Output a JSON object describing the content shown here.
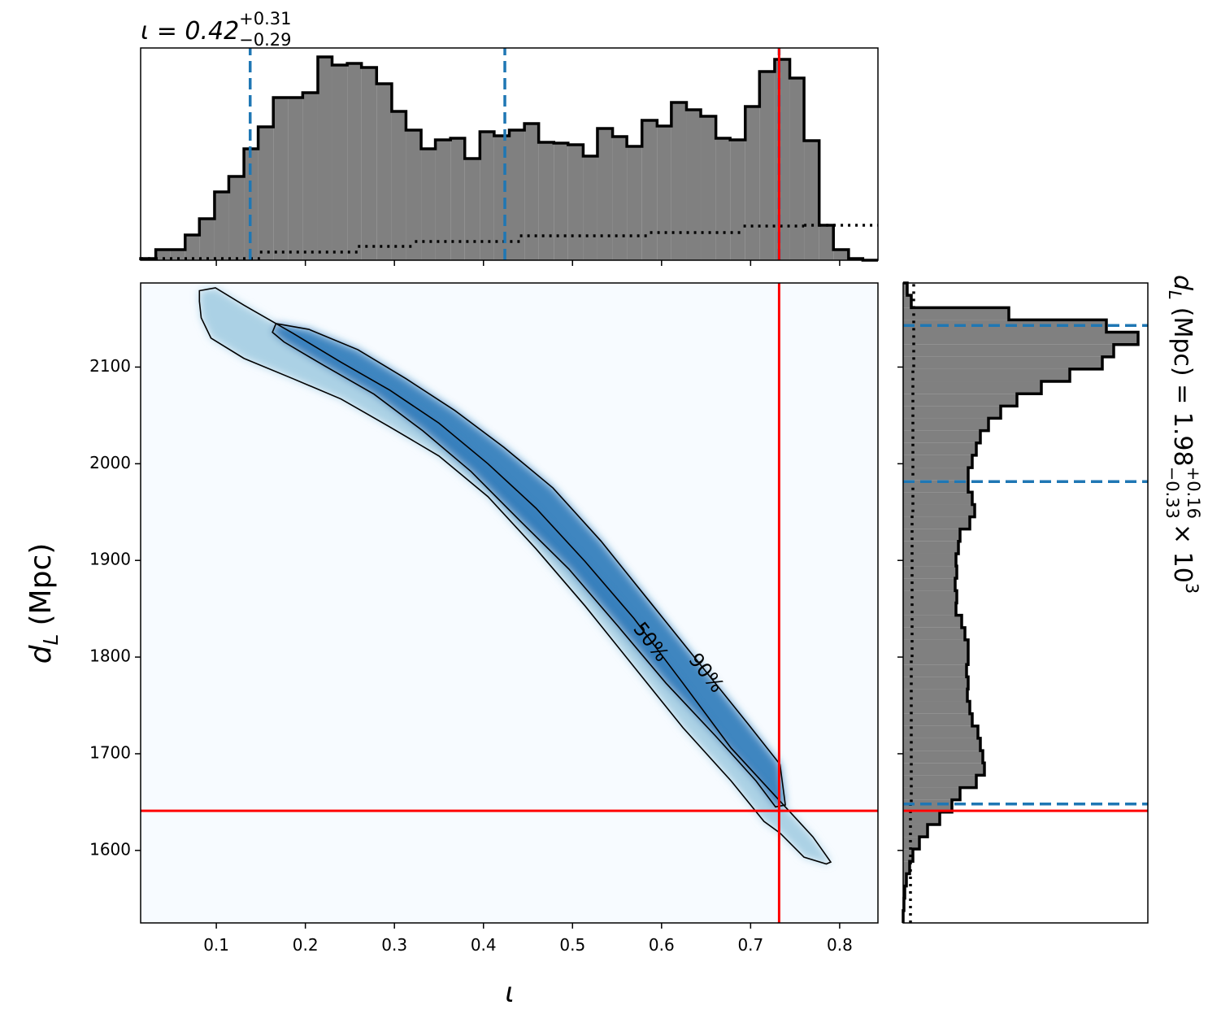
{
  "chart_data": [
    {
      "type": "histogram",
      "orientation": "vertical",
      "title": {
        "text": "ι = 0.42",
        "sup": "+0.31",
        "sub": "−0.29"
      },
      "xlim": [
        0.015,
        0.843
      ],
      "ylim": [
        0,
        261
      ],
      "xticks": [
        0.1,
        0.2,
        0.3,
        0.4,
        0.5,
        0.6,
        0.7,
        0.8
      ],
      "bins": [
        0.015,
        0.032,
        0.048,
        0.065,
        0.081,
        0.098,
        0.114,
        0.131,
        0.147,
        0.164,
        0.181,
        0.197,
        0.214,
        0.23,
        0.247,
        0.263,
        0.28,
        0.297,
        0.313,
        0.33,
        0.346,
        0.363,
        0.379,
        0.396,
        0.412,
        0.429,
        0.446,
        0.462,
        0.479,
        0.495,
        0.512,
        0.528,
        0.545,
        0.561,
        0.578,
        0.595,
        0.611,
        0.628,
        0.644,
        0.661,
        0.677,
        0.694,
        0.71,
        0.727,
        0.744,
        0.76,
        0.777,
        0.793,
        0.81,
        0.826,
        0.843
      ],
      "counts": [
        2,
        13,
        13,
        31,
        51,
        84,
        103,
        137,
        164,
        200,
        200,
        206,
        250,
        240,
        242,
        237,
        217,
        183,
        160,
        137,
        148,
        150,
        125,
        158,
        153,
        160,
        168,
        145,
        144,
        142,
        128,
        162,
        152,
        140,
        172,
        165,
        194,
        185,
        177,
        150,
        148,
        189,
        232,
        247,
        224,
        147,
        43,
        13,
        2,
        0
      ],
      "color": "#808080",
      "edge_color": "#000000",
      "quantiles": [
        0.138,
        0.424,
        0.732
      ],
      "quantile_color": "#1f77b4",
      "truth": 0.732,
      "truth_color": "#ff0000",
      "prior": {
        "x": [
          0.015,
          0.149,
          0.259,
          0.323,
          0.441,
          0.587,
          0.692,
          0.76
        ],
        "values": [
          2,
          10,
          17,
          23,
          30,
          34,
          42,
          43
        ]
      }
    },
    {
      "type": "contour",
      "xlim": [
        0.015,
        0.843
      ],
      "ylim": [
        1525,
        2187
      ],
      "xticks": [
        0.1,
        0.2,
        0.3,
        0.4,
        0.5,
        0.6,
        0.7,
        0.8
      ],
      "yticks": [
        1600,
        1700,
        1800,
        1900,
        2000,
        2100
      ],
      "xlabel": "ι",
      "ylabel": {
        "symbol": "d",
        "subscript": "L",
        "unit": "(Mpc)"
      },
      "background": "#f7fbff",
      "contours": [
        {
          "label": "90%",
          "fill": "#9ecae1",
          "color": "#000000",
          "x": [
            0.081,
            0.099,
            0.131,
            0.186,
            0.24,
            0.295,
            0.35,
            0.405,
            0.459,
            0.514,
            0.569,
            0.624,
            0.678,
            0.733,
            0.77,
            0.79,
            0.785,
            0.76,
            0.733,
            0.715,
            0.678,
            0.624,
            0.569,
            0.514,
            0.459,
            0.405,
            0.35,
            0.295,
            0.24,
            0.186,
            0.131,
            0.094,
            0.083,
            0.081
          ],
          "y": [
            2179,
            2182,
            2164,
            2135,
            2105,
            2076,
            2042,
            2000,
            1954,
            1899,
            1840,
            1773,
            1706,
            1651,
            1614,
            1588,
            1586,
            1593,
            1618,
            1630,
            1672,
            1727,
            1790,
            1853,
            1912,
            1966,
            2008,
            2038,
            2067,
            2088,
            2109,
            2130,
            2151,
            2168
          ]
        },
        {
          "label": "50%",
          "fill": "#2171b5",
          "color": "#000000",
          "x": [
            0.167,
            0.204,
            0.259,
            0.313,
            0.368,
            0.423,
            0.478,
            0.532,
            0.587,
            0.642,
            0.697,
            0.733,
            0.739,
            0.728,
            0.706,
            0.66,
            0.605,
            0.551,
            0.496,
            0.441,
            0.386,
            0.332,
            0.277,
            0.222,
            0.176,
            0.163
          ],
          "y": [
            2145,
            2139,
            2118,
            2088,
            2055,
            2017,
            1975,
            1920,
            1857,
            1794,
            1731,
            1689,
            1647,
            1645,
            1672,
            1719,
            1773,
            1832,
            1891,
            1941,
            1992,
            2034,
            2072,
            2101,
            2126,
            2136
          ]
        }
      ],
      "truth": {
        "x": 0.732,
        "y": 1641
      },
      "truth_color": "#ff0000"
    },
    {
      "type": "histogram",
      "orientation": "horizontal",
      "label": {
        "symbol": "d",
        "subscript": "L",
        "text": "(Mpc) = 1.98",
        "sup": "+0.16",
        "sub": "−0.33",
        "times": "× 10",
        "exponent": "3"
      },
      "xlim": [
        0,
        301
      ],
      "ylim": [
        1525,
        2187
      ],
      "yticks": [
        1600,
        1700,
        1800,
        1900,
        2000,
        2100
      ],
      "bins": [
        1525.0,
        1537.7,
        1550.5,
        1563.2,
        1575.9,
        1588.7,
        1601.4,
        1614.1,
        1626.8,
        1639.6,
        1652.3,
        1665.0,
        1677.8,
        1690.5,
        1703.2,
        1716.0,
        1728.7,
        1741.4,
        1754.2,
        1766.9,
        1779.6,
        1792.3,
        1805.1,
        1817.8,
        1830.5,
        1843.3,
        1856.0,
        1868.7,
        1881.5,
        1894.2,
        1906.9,
        1919.7,
        1932.4,
        1945.1,
        1957.8,
        1970.6,
        1983.3,
        1996.0,
        2008.8,
        2021.5,
        2034.2,
        2047.0,
        2059.7,
        2072.4,
        2085.2,
        2097.9,
        2110.6,
        2123.3,
        2136.1,
        2148.8,
        2161.5,
        2174.3,
        2187.0
      ],
      "counts": [
        0,
        1,
        2,
        4,
        8,
        12,
        20,
        30,
        45,
        60,
        70,
        90,
        100,
        98,
        95,
        92,
        85,
        82,
        79,
        80,
        78,
        80,
        80,
        76,
        72,
        65,
        66,
        64,
        66,
        65,
        68,
        70,
        82,
        88,
        85,
        80,
        80,
        85,
        90,
        95,
        105,
        120,
        140,
        170,
        205,
        245,
        259,
        289,
        250,
        130,
        10,
        5
      ],
      "color": "#808080",
      "edge_color": "#000000",
      "quantiles": [
        1648,
        1981.5,
        2143
      ],
      "quantile_color": "#1f77b4",
      "truth": 1641,
      "truth_color": "#ff0000",
      "prior": {
        "y": [
          1525,
          1650,
          1800,
          1950,
          2100
        ],
        "values": [
          9,
          10,
          11,
          12,
          13
        ]
      }
    }
  ]
}
